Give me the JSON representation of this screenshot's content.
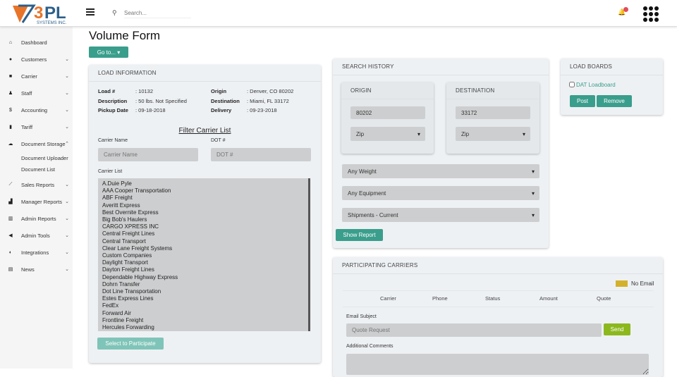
{
  "header": {
    "brand": "3PL SYSTEMS INC.",
    "search_placeholder": "Search...",
    "notification_count": "0"
  },
  "sidebar": {
    "items": [
      {
        "label": "Dashboard",
        "icon": "home-icon",
        "glyph": "⌂",
        "chevron": ""
      },
      {
        "label": "Customers",
        "icon": "users-icon",
        "glyph": "●",
        "chevron": "⌄"
      },
      {
        "label": "Carrier",
        "icon": "truck-icon",
        "glyph": "■",
        "chevron": "⌄"
      },
      {
        "label": "Staff",
        "icon": "staff-icon",
        "glyph": "♟",
        "chevron": "⌄"
      },
      {
        "label": "Accounting",
        "icon": "dollar-icon",
        "glyph": "$",
        "chevron": "⌄"
      },
      {
        "label": "Tariff",
        "icon": "file-icon",
        "glyph": "▮",
        "chevron": "⌄"
      },
      {
        "label": "Document Storage",
        "icon": "cloud-upload-icon",
        "glyph": "☁",
        "chevron": "⌃"
      },
      {
        "label": "Sales Reports",
        "icon": "line-chart-icon",
        "glyph": "⟋",
        "chevron": "⌄"
      },
      {
        "label": "Manager Reports",
        "icon": "area-chart-icon",
        "glyph": "▟",
        "chevron": "⌄"
      },
      {
        "label": "Admin Reports",
        "icon": "bar-chart-icon",
        "glyph": "▥",
        "chevron": "⌄"
      },
      {
        "label": "Admin Tools",
        "icon": "bullhorn-icon",
        "glyph": "◀",
        "chevron": "⌄"
      },
      {
        "label": "Integrations",
        "icon": "toggle-icon",
        "glyph": "◐",
        "chevron": "⌄"
      },
      {
        "label": "News",
        "icon": "newspaper-icon",
        "glyph": "▤",
        "chevron": "⌄"
      }
    ],
    "subitems": [
      "Document Uploader",
      "Document List"
    ]
  },
  "page": {
    "title": "Volume Form",
    "goto_label": "Go to... ▾"
  },
  "load_info": {
    "title": "LOAD INFORMATION",
    "left": [
      {
        "k": "Load #",
        "v": ": 10132"
      },
      {
        "k": "Description",
        "v": ": 50 lbs. Not Specified"
      },
      {
        "k": "Pickup Date",
        "v": ": 09-18-2018"
      }
    ],
    "right": [
      {
        "k": "Origin",
        "v": ": Denver, CO 80202"
      },
      {
        "k": "Destination",
        "v": ": Miami, FL 33172"
      },
      {
        "k": "Delivery",
        "v": ": 09-23-2018"
      }
    ],
    "filter_title": "Filter Carrier List",
    "carrier_name_label": "Carrier Name",
    "carrier_name_placeholder": "Carrier Name",
    "dot_label": "DOT #",
    "dot_placeholder": "DOT #",
    "carrier_list_label": "Carrier List",
    "carriers": [
      "A.Duie Pyle",
      "AAA Cooper Transportation",
      "ABF Freight",
      "Averitt Express",
      "Best Overnite Express",
      "Big Bob's Haulers",
      "CARGO XPRESS INC",
      "Central Freight Lines",
      "Central Transport",
      "Clear Lane Freight Systems",
      "Custom Companies",
      "Daylight Transport",
      "Dayton Freight Lines",
      "Dependable Highway Express",
      "Dohrn Transfer",
      "Dot Line Transportation",
      "Estes Express Lines",
      "FedEx",
      "Forward Air",
      "Frontline Freight",
      "Hercules Forwarding"
    ],
    "select_button": "Select to Participate"
  },
  "search_history": {
    "title": "SEARCH HISTORY",
    "origin_title": "ORIGIN",
    "origin_zip": "80202",
    "origin_type": "Zip",
    "dest_title": "DESTINATION",
    "dest_zip": "33172",
    "dest_type": "Zip",
    "weight": "Any Weight",
    "equipment": "Any Equipment",
    "shipments": "Shipments - Current",
    "show_report": "Show Report"
  },
  "load_boards": {
    "title": "LOAD BOARDS",
    "option": "DAT Loadboard",
    "post": "Post",
    "remove": "Remove"
  },
  "participating": {
    "title": "PARTICIPATING CARRIERS",
    "legend": "No Email",
    "legend_color": "#d4b12c",
    "columns": [
      "Carrier",
      "Phone",
      "Status",
      "Amount",
      "Quote"
    ],
    "email_subject_label": "Email Subject",
    "email_subject_placeholder": "Quote Request",
    "send": "Send",
    "comments_label": "Additional Comments"
  },
  "colors": {
    "accent": "#3a9e8c",
    "send": "#8cb81e"
  }
}
